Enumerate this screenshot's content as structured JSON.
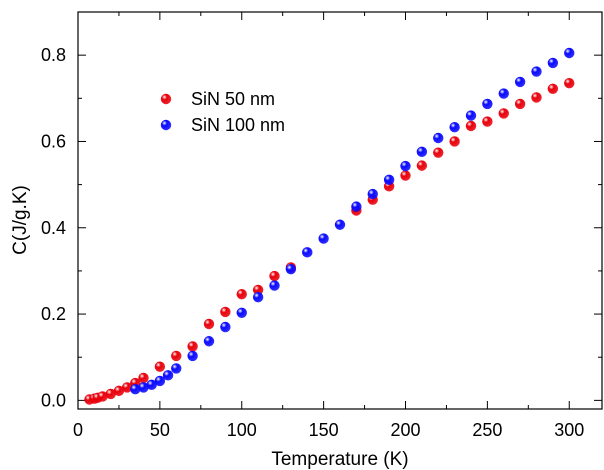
{
  "chart_data": {
    "type": "scatter",
    "xlabel": "Temperature (K)",
    "ylabel": "C(J/g.K)",
    "xlim": [
      0,
      320
    ],
    "ylim": [
      -0.02,
      0.9
    ],
    "x_ticks": [
      0,
      50,
      100,
      150,
      200,
      250,
      300
    ],
    "y_ticks": [
      0.0,
      0.2,
      0.4,
      0.6,
      0.8
    ],
    "x_tick_labels": [
      "0",
      "50",
      "100",
      "150",
      "200",
      "250",
      "300"
    ],
    "y_tick_labels": [
      "0.0",
      "0.2",
      "0.4",
      "0.6",
      "0.8"
    ],
    "grid": false,
    "legend_position": "upper-left",
    "series": [
      {
        "name": "SiN 50 nm",
        "color": "#e8000b",
        "points": [
          [
            7,
            0.002
          ],
          [
            10,
            0.004
          ],
          [
            12,
            0.006
          ],
          [
            15,
            0.009
          ],
          [
            20,
            0.015
          ],
          [
            25,
            0.022
          ],
          [
            30,
            0.03
          ],
          [
            35,
            0.04
          ],
          [
            40,
            0.052
          ],
          [
            50,
            0.078
          ],
          [
            60,
            0.103
          ],
          [
            70,
            0.125
          ],
          [
            80,
            0.177
          ],
          [
            90,
            0.205
          ],
          [
            100,
            0.246
          ],
          [
            110,
            0.256
          ],
          [
            120,
            0.288
          ],
          [
            130,
            0.308
          ],
          [
            170,
            0.44
          ],
          [
            180,
            0.465
          ],
          [
            190,
            0.496
          ],
          [
            200,
            0.521
          ],
          [
            210,
            0.544
          ],
          [
            220,
            0.574
          ],
          [
            230,
            0.6
          ],
          [
            240,
            0.636
          ],
          [
            250,
            0.646
          ],
          [
            260,
            0.665
          ],
          [
            270,
            0.687
          ],
          [
            280,
            0.702
          ],
          [
            290,
            0.722
          ],
          [
            300,
            0.735
          ]
        ]
      },
      {
        "name": "SiN 100 nm",
        "color": "#0a0aff",
        "points": [
          [
            35,
            0.026
          ],
          [
            40,
            0.03
          ],
          [
            45,
            0.036
          ],
          [
            50,
            0.045
          ],
          [
            55,
            0.058
          ],
          [
            60,
            0.074
          ],
          [
            70,
            0.103
          ],
          [
            80,
            0.137
          ],
          [
            90,
            0.17
          ],
          [
            100,
            0.203
          ],
          [
            110,
            0.239
          ],
          [
            120,
            0.266
          ],
          [
            130,
            0.304
          ],
          [
            140,
            0.343
          ],
          [
            150,
            0.375
          ],
          [
            160,
            0.407
          ],
          [
            170,
            0.449
          ],
          [
            180,
            0.478
          ],
          [
            190,
            0.511
          ],
          [
            200,
            0.543
          ],
          [
            210,
            0.576
          ],
          [
            220,
            0.608
          ],
          [
            230,
            0.633
          ],
          [
            240,
            0.66
          ],
          [
            250,
            0.687
          ],
          [
            260,
            0.711
          ],
          [
            270,
            0.738
          ],
          [
            280,
            0.762
          ],
          [
            290,
            0.782
          ],
          [
            300,
            0.805
          ]
        ]
      }
    ]
  }
}
